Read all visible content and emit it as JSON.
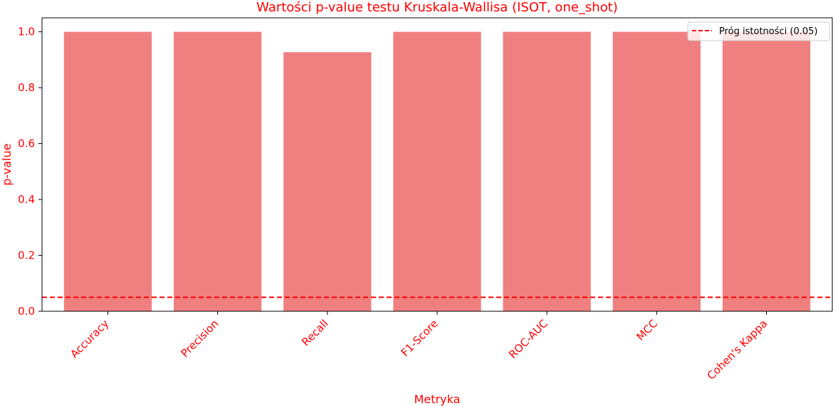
{
  "chart_data": {
    "type": "bar",
    "title": "Wartości p-value testu Kruskala-Wallisa (ISOT, one_shot)",
    "xlabel": "Metryka",
    "ylabel": "p-value",
    "categories": [
      "Accuracy",
      "Precision",
      "Recall",
      "F1-Score",
      "ROC-AUC",
      "MCC",
      "Cohen's Kappa"
    ],
    "values": [
      1.0,
      1.0,
      0.927,
      1.0,
      1.0,
      1.0,
      1.0
    ],
    "ylim": [
      0,
      1.05
    ],
    "yticks": [
      "0.0",
      "0.2",
      "0.4",
      "0.6",
      "0.8",
      "1.0"
    ],
    "threshold": {
      "value": 0.05,
      "label": "Próg istotności (0.05)"
    },
    "legend_position": "top-right",
    "grid": false,
    "colors": {
      "bar": "#f08080",
      "threshold": "#ff0000",
      "text": "#ff0000",
      "axis": "#000000"
    }
  }
}
